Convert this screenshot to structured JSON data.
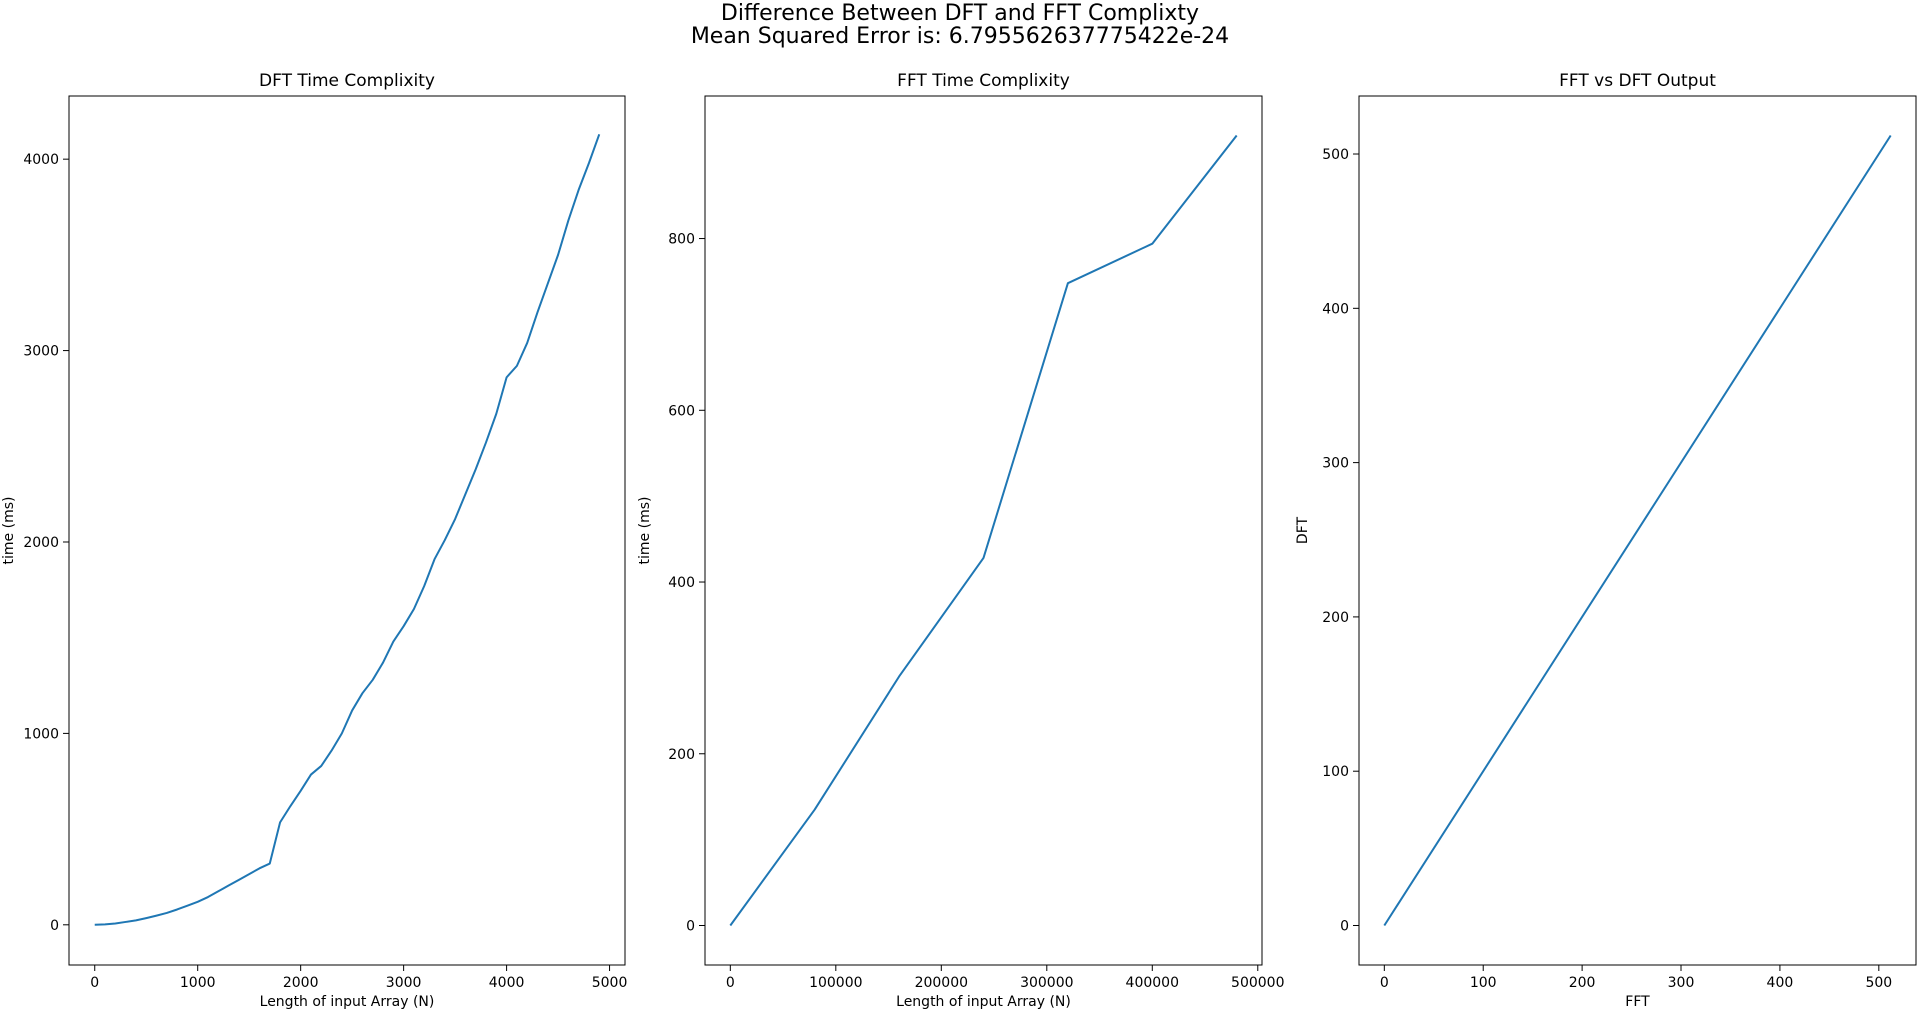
{
  "figure": {
    "title_line1": "Difference Between DFT and FFT Complixty",
    "title_line2": "Mean Squared Error is: 6.795562637775422e-24"
  },
  "line_color": "#1f77b4",
  "chart_data": [
    {
      "type": "line",
      "title": "DFT Time Complixity",
      "xlabel": "Length of input Array (N)",
      "ylabel": "time (ms)",
      "xlim": [
        -250,
        5150
      ],
      "ylim": [
        -210,
        4330
      ],
      "xticks": [
        0,
        1000,
        2000,
        3000,
        4000,
        5000
      ],
      "yticks": [
        0,
        1000,
        2000,
        3000,
        4000
      ],
      "series": [
        {
          "x": [
            0,
            100,
            200,
            300,
            400,
            500,
            600,
            700,
            800,
            900,
            1000,
            1100,
            1200,
            1300,
            1400,
            1500,
            1600,
            1700,
            1800,
            1900,
            2000,
            2100,
            2200,
            2300,
            2400,
            2500,
            2600,
            2700,
            2800,
            2900,
            3000,
            3100,
            3200,
            3300,
            3400,
            3500,
            3600,
            3700,
            3800,
            3900,
            4000,
            4100,
            4200,
            4300,
            4400,
            4500,
            4600,
            4700,
            4800,
            4900
          ],
          "y": [
            0,
            2,
            7,
            15,
            23,
            35,
            48,
            62,
            80,
            100,
            120,
            145,
            175,
            205,
            235,
            265,
            295,
            320,
            535,
            620,
            700,
            785,
            830,
            910,
            1000,
            1120,
            1210,
            1280,
            1370,
            1480,
            1560,
            1650,
            1770,
            1910,
            2010,
            2120,
            2250,
            2380,
            2520,
            2670,
            2860,
            2920,
            3040,
            3200,
            3350,
            3500,
            3680,
            3840,
            3980,
            4130
          ]
        }
      ]
    },
    {
      "type": "line",
      "title": "FFT Time Complixity",
      "xlabel": "Length of input Array (N)",
      "ylabel": "time (ms)",
      "xlim": [
        -24000,
        504000
      ],
      "ylim": [
        -46,
        966
      ],
      "xticks": [
        0,
        100000,
        200000,
        300000,
        400000,
        500000
      ],
      "yticks": [
        0,
        200,
        400,
        600,
        800
      ],
      "series": [
        {
          "x": [
            0,
            80000,
            160000,
            240000,
            320000,
            400000,
            480000
          ],
          "y": [
            0,
            135,
            290,
            428,
            748,
            794,
            920
          ]
        }
      ]
    },
    {
      "type": "line",
      "title": "FFT vs DFT Output",
      "xlabel": "FFT",
      "ylabel": "DFT",
      "xlim": [
        -25.6,
        537.6
      ],
      "ylim": [
        -25.6,
        537.6
      ],
      "xticks": [
        0,
        100,
        200,
        300,
        400,
        500
      ],
      "yticks": [
        0,
        100,
        200,
        300,
        400,
        500
      ],
      "series": [
        {
          "x": [
            0,
            512
          ],
          "y": [
            0,
            512
          ]
        }
      ]
    }
  ]
}
